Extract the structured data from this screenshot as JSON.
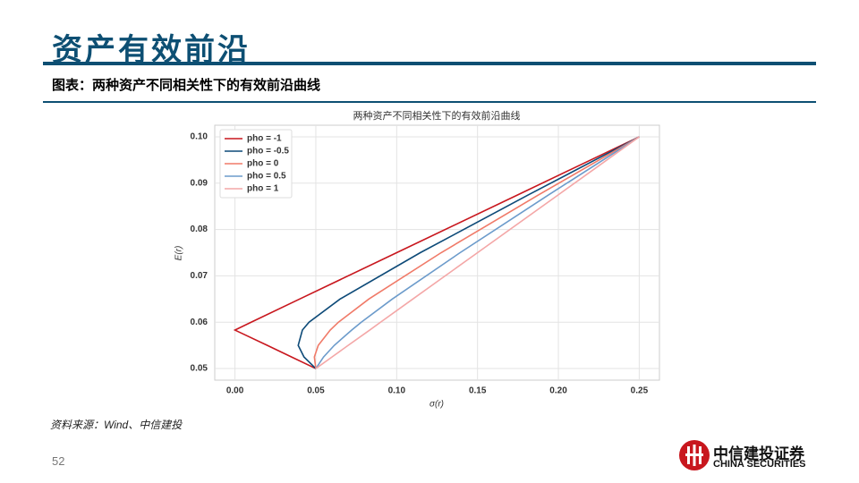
{
  "page": {
    "title": "资产有效前沿",
    "subtitle": "图表：两种资产不同相关性下的有效前沿曲线",
    "source": "资料来源：Wind、中信建投",
    "page_number": "52",
    "logo_cn": "中信建投证券",
    "logo_en": "CHINA SECURITIES"
  },
  "chart_data": {
    "type": "line",
    "title": "两种资产不同相关性下的有效前沿曲线",
    "x_label": "σ(r)",
    "y_label": "E(r)",
    "xlim": [
      -0.0125,
      0.2625
    ],
    "ylim": [
      0.0475,
      0.1025
    ],
    "xticks": [
      {
        "value": 0,
        "label": "0.00"
      },
      0.05,
      {
        "value": 0.1,
        "label": "0.10"
      },
      0.15,
      {
        "value": 0.2,
        "label": "0.20"
      },
      0.25
    ],
    "yticks": [
      0.05,
      0.06,
      0.07,
      0.08,
      0.09,
      {
        "value": 0.1,
        "label": "0.10"
      }
    ],
    "grid": true,
    "legend": "upper left",
    "series": [
      {
        "name": "pho = -1",
        "color": "#c8171e",
        "x": [
          0.05,
          0.035,
          0.02,
          0,
          0.01,
          0.04,
          0.1,
          0.175,
          0.25
        ],
        "values": [
          0.05,
          0.0525,
          0.055,
          0.0583,
          0.06,
          0.065,
          0.075,
          0.0875,
          0.1
        ]
      },
      {
        "name": "pho = -0.5",
        "color": "#0d4a78",
        "x": [
          0.05,
          0.0427,
          0.0391,
          0.0417,
          0.0458,
          0.065,
          0.1146,
          0.1816,
          0.25
        ],
        "values": [
          0.05,
          0.0525,
          0.055,
          0.0583,
          0.06,
          0.065,
          0.075,
          0.0875,
          0.1
        ]
      },
      {
        "name": "pho = 0",
        "color": "#f07a68",
        "x": [
          0.05,
          0.0491,
          0.0515,
          0.0589,
          0.064,
          0.0828,
          0.1275,
          0.1879,
          0.25
        ],
        "values": [
          0.05,
          0.0525,
          0.055,
          0.0583,
          0.06,
          0.065,
          0.075,
          0.0875,
          0.1
        ]
      },
      {
        "name": "pho = 0.5",
        "color": "#6c9bcb",
        "x": [
          0.05,
          0.0548,
          0.0614,
          0.0722,
          0.0781,
          0.0973,
          0.1392,
          0.1941,
          0.25
        ],
        "values": [
          0.05,
          0.0525,
          0.055,
          0.0583,
          0.06,
          0.065,
          0.075,
          0.0875,
          0.1
        ]
      },
      {
        "name": "pho = 1",
        "color": "#f4a7a7",
        "x": [
          0.05,
          0.06,
          0.07,
          0.0833,
          0.09,
          0.11,
          0.15,
          0.2,
          0.25
        ],
        "values": [
          0.05,
          0.0525,
          0.055,
          0.0583,
          0.06,
          0.065,
          0.075,
          0.0875,
          0.1
        ]
      }
    ]
  }
}
